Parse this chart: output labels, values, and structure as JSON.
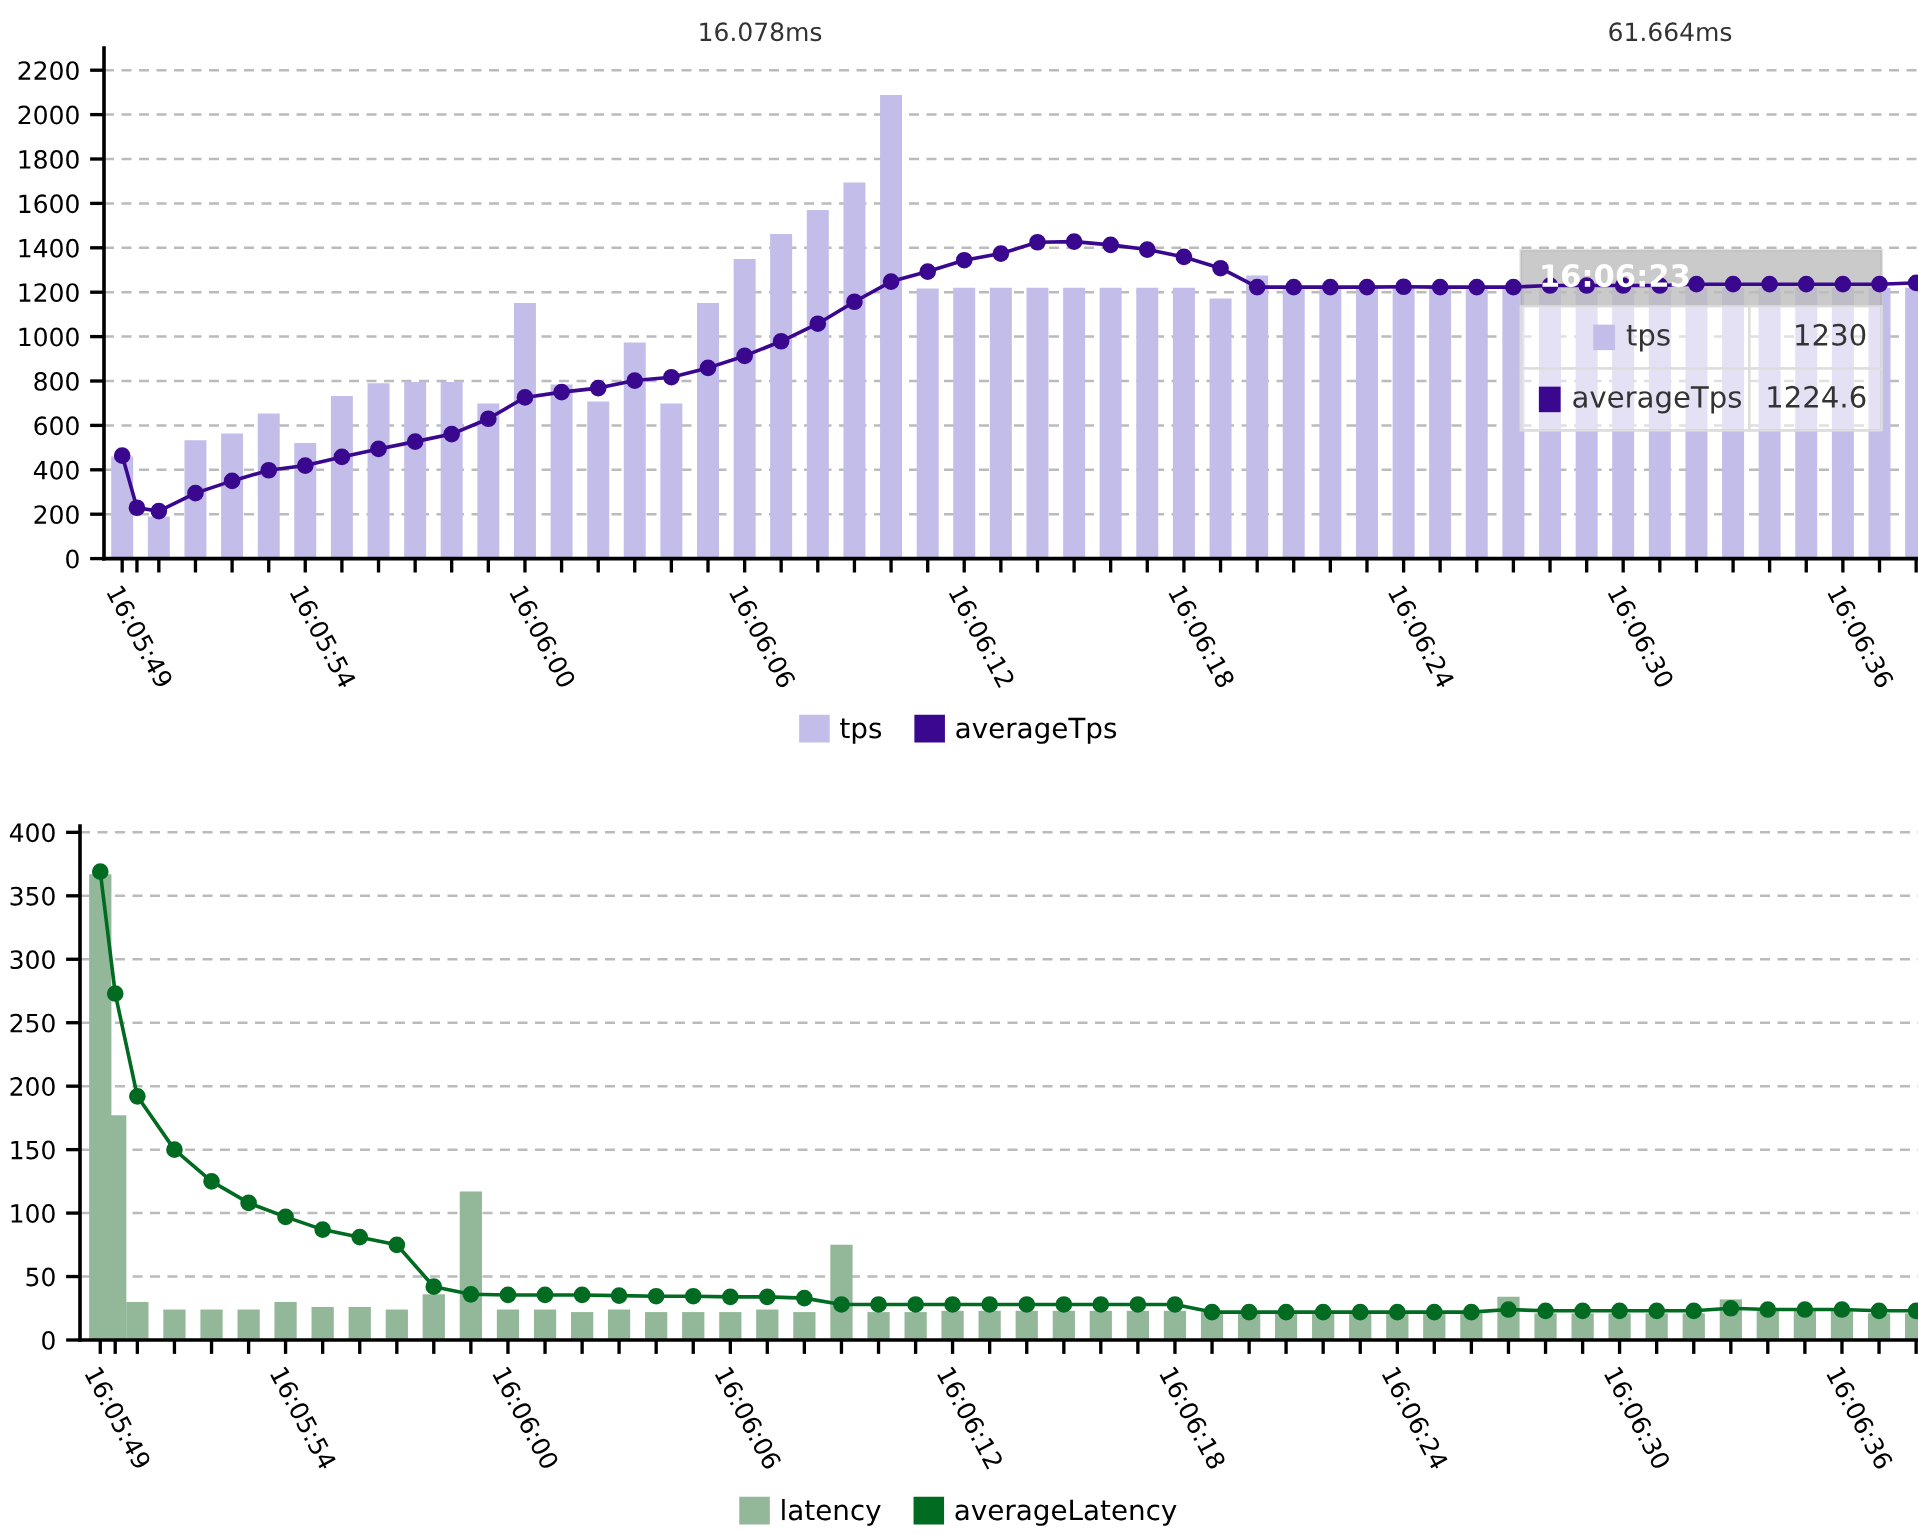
{
  "chart_data": [
    {
      "type": "bar",
      "annotations": [
        "16.078ms",
        "61.664ms",
        "16:06:23",
        "tps",
        "1230",
        "averageTps",
        "1224.6"
      ],
      "x": [
        16.096944,
        16.097056,
        16.097222,
        16.0975,
        16.097778,
        16.098056,
        16.098333,
        16.098611,
        16.098889,
        16.099167,
        16.099444,
        16.099722,
        16.1,
        16.100278,
        16.100556,
        16.100833,
        16.101111,
        16.101389,
        16.101667,
        16.101944,
        16.102222,
        16.1025,
        16.102778,
        16.103056,
        16.103333,
        16.103611,
        16.103889,
        16.104167,
        16.104444,
        16.104722,
        16.105,
        16.105278,
        16.105556,
        16.105833,
        16.106111,
        16.106389,
        16.106667,
        16.106944,
        16.107222,
        16.1075,
        16.107778,
        16.108056,
        16.108333,
        16.108611,
        16.108889,
        16.109167,
        16.109444,
        16.109722,
        16.11,
        16.110278,
        16.110556
      ],
      "series": [
        {
          "name": "tps",
          "color": "#c3bde9",
          "values": [
            460,
            0,
            190,
            533,
            563,
            654,
            521,
            732,
            790,
            796,
            796,
            699,
            1151,
            784,
            708,
            973,
            699,
            1151,
            1350,
            1462,
            1570,
            1694,
            2088,
            1217,
            1220,
            1220,
            1220,
            1220,
            1220,
            1220,
            1220,
            1172,
            1275,
            1220,
            1220,
            1220,
            1230,
            1220,
            1220,
            1220,
            1220,
            1220,
            1220,
            1220,
            1220,
            1220,
            1220,
            1220,
            1220,
            1220,
            1220
          ]
        },
        {
          "name": "averageTps",
          "type": "line",
          "color": "#3a078f",
          "marker": "circle",
          "values": [
            464,
            229,
            214,
            295,
            350,
            398,
            419,
            458,
            494,
            527,
            561,
            630,
            726,
            750,
            768,
            802,
            817,
            859,
            913,
            979,
            1058,
            1157,
            1248,
            1293,
            1344,
            1374,
            1425,
            1428,
            1413,
            1392,
            1359,
            1308,
            1223,
            1223,
            1223,
            1223,
            1224.6,
            1223,
            1223,
            1223,
            1230,
            1230,
            1230,
            1230,
            1236,
            1236,
            1236,
            1236,
            1236,
            1236,
            1242
          ]
        }
      ],
      "xlim": [
        16.096806,
        16.11057
      ],
      "xticks": [
        {
          "value": 16.096944,
          "label": "16:05:49"
        },
        {
          "value": 16.097056,
          "label": null
        },
        {
          "value": 16.097222,
          "label": null
        },
        {
          "value": 16.0975,
          "label": null
        },
        {
          "value": 16.097778,
          "label": null
        },
        {
          "value": 16.098056,
          "label": null
        },
        {
          "value": 16.098333,
          "label": "16:05:54"
        },
        {
          "value": 16.098611,
          "label": null
        },
        {
          "value": 16.098889,
          "label": null
        },
        {
          "value": 16.099167,
          "label": null
        },
        {
          "value": 16.099444,
          "label": null
        },
        {
          "value": 16.099722,
          "label": null
        },
        {
          "value": 16.1,
          "label": "16:06:00"
        },
        {
          "value": 16.100278,
          "label": null
        },
        {
          "value": 16.100556,
          "label": null
        },
        {
          "value": 16.100833,
          "label": null
        },
        {
          "value": 16.101111,
          "label": null
        },
        {
          "value": 16.101389,
          "label": null
        },
        {
          "value": 16.101667,
          "label": "16:06:06"
        },
        {
          "value": 16.101944,
          "label": null
        },
        {
          "value": 16.102222,
          "label": null
        },
        {
          "value": 16.1025,
          "label": null
        },
        {
          "value": 16.102778,
          "label": null
        },
        {
          "value": 16.103056,
          "label": null
        },
        {
          "value": 16.103333,
          "label": "16:06:12"
        },
        {
          "value": 16.103611,
          "label": null
        },
        {
          "value": 16.103889,
          "label": null
        },
        {
          "value": 16.104167,
          "label": null
        },
        {
          "value": 16.104444,
          "label": null
        },
        {
          "value": 16.104722,
          "label": null
        },
        {
          "value": 16.105,
          "label": "16:06:18"
        },
        {
          "value": 16.105278,
          "label": null
        },
        {
          "value": 16.105556,
          "label": null
        },
        {
          "value": 16.105833,
          "label": null
        },
        {
          "value": 16.106111,
          "label": null
        },
        {
          "value": 16.106389,
          "label": null
        },
        {
          "value": 16.106667,
          "label": "16:06:24"
        },
        {
          "value": 16.106944,
          "label": null
        },
        {
          "value": 16.107222,
          "label": null
        },
        {
          "value": 16.1075,
          "label": null
        },
        {
          "value": 16.107778,
          "label": null
        },
        {
          "value": 16.108056,
          "label": null
        },
        {
          "value": 16.108333,
          "label": "16:06:30"
        },
        {
          "value": 16.108611,
          "label": null
        },
        {
          "value": 16.108889,
          "label": null
        },
        {
          "value": 16.109167,
          "label": null
        },
        {
          "value": 16.109444,
          "label": null
        },
        {
          "value": 16.109722,
          "label": null
        },
        {
          "value": 16.11,
          "label": "16:06:36"
        },
        {
          "value": 16.110278,
          "label": null
        },
        {
          "value": 16.110556,
          "label": null
        }
      ],
      "ylim": [
        0,
        2300
      ],
      "yticks": [
        0,
        200,
        400,
        600,
        800,
        1000,
        1200,
        1400,
        1600,
        1800,
        2000,
        2200
      ],
      "grid": "y",
      "legend": "bottom"
    },
    {
      "type": "bar",
      "x": [
        16.096944,
        16.097056,
        16.097222,
        16.0975,
        16.097778,
        16.098056,
        16.098333,
        16.098611,
        16.098889,
        16.099167,
        16.099444,
        16.099722,
        16.1,
        16.100278,
        16.100556,
        16.100833,
        16.101111,
        16.101389,
        16.101667,
        16.101944,
        16.102222,
        16.1025,
        16.102778,
        16.103056,
        16.103333,
        16.103611,
        16.103889,
        16.104167,
        16.104444,
        16.104722,
        16.105,
        16.105278,
        16.105556,
        16.105833,
        16.106111,
        16.106389,
        16.106667,
        16.106944,
        16.107222,
        16.1075,
        16.107778,
        16.108056,
        16.108333,
        16.108611,
        16.108889,
        16.109167,
        16.109444,
        16.109722,
        16.11,
        16.110278,
        16.110556
      ],
      "series": [
        {
          "name": "latency",
          "color": "#93b899",
          "values": [
            367,
            177,
            30,
            24,
            24,
            24,
            30,
            26,
            26,
            24,
            36,
            117,
            24,
            24,
            22,
            24,
            22,
            22,
            22,
            24,
            22,
            75,
            22,
            22,
            23,
            23,
            23,
            23,
            23,
            23,
            23,
            22,
            21,
            21,
            21,
            21,
            21,
            21,
            21,
            34,
            21,
            21,
            21,
            21,
            21,
            32,
            23,
            23,
            23,
            21,
            21
          ]
        },
        {
          "name": "averageLatency",
          "type": "line",
          "color": "#006b21",
          "marker": "circle",
          "values": [
            369,
            273,
            192,
            150,
            125,
            108,
            97,
            87,
            81,
            75,
            42,
            36,
            35.5,
            35.5,
            35.5,
            35,
            34.5,
            34.5,
            34,
            34,
            33,
            28,
            28,
            28,
            28,
            28,
            28,
            28,
            28,
            28,
            28,
            22,
            22,
            22,
            22,
            22,
            22,
            22,
            22,
            24,
            23,
            23,
            23,
            23,
            23,
            25,
            24,
            24,
            24,
            23,
            23
          ]
        }
      ],
      "xlim": [
        16.096792,
        16.11057
      ],
      "xticks": [
        {
          "value": 16.096944,
          "label": "16:05:49"
        },
        {
          "value": 16.097056,
          "label": null
        },
        {
          "value": 16.097222,
          "label": null
        },
        {
          "value": 16.0975,
          "label": null
        },
        {
          "value": 16.097778,
          "label": null
        },
        {
          "value": 16.098056,
          "label": null
        },
        {
          "value": 16.098333,
          "label": "16:05:54"
        },
        {
          "value": 16.098611,
          "label": null
        },
        {
          "value": 16.098889,
          "label": null
        },
        {
          "value": 16.099167,
          "label": null
        },
        {
          "value": 16.099444,
          "label": null
        },
        {
          "value": 16.099722,
          "label": null
        },
        {
          "value": 16.1,
          "label": "16:06:00"
        },
        {
          "value": 16.100278,
          "label": null
        },
        {
          "value": 16.100556,
          "label": null
        },
        {
          "value": 16.100833,
          "label": null
        },
        {
          "value": 16.101111,
          "label": null
        },
        {
          "value": 16.101389,
          "label": null
        },
        {
          "value": 16.101667,
          "label": "16:06:06"
        },
        {
          "value": 16.101944,
          "label": null
        },
        {
          "value": 16.102222,
          "label": null
        },
        {
          "value": 16.1025,
          "label": null
        },
        {
          "value": 16.102778,
          "label": null
        },
        {
          "value": 16.103056,
          "label": null
        },
        {
          "value": 16.103333,
          "label": "16:06:12"
        },
        {
          "value": 16.103611,
          "label": null
        },
        {
          "value": 16.103889,
          "label": null
        },
        {
          "value": 16.104167,
          "label": null
        },
        {
          "value": 16.104444,
          "label": null
        },
        {
          "value": 16.104722,
          "label": null
        },
        {
          "value": 16.105,
          "label": "16:06:18"
        },
        {
          "value": 16.105278,
          "label": null
        },
        {
          "value": 16.105556,
          "label": null
        },
        {
          "value": 16.105833,
          "label": null
        },
        {
          "value": 16.106111,
          "label": null
        },
        {
          "value": 16.106389,
          "label": null
        },
        {
          "value": 16.106667,
          "label": "16:06:24"
        },
        {
          "value": 16.106944,
          "label": null
        },
        {
          "value": 16.107222,
          "label": null
        },
        {
          "value": 16.1075,
          "label": null
        },
        {
          "value": 16.107778,
          "label": null
        },
        {
          "value": 16.108056,
          "label": null
        },
        {
          "value": 16.108333,
          "label": "16:06:30"
        },
        {
          "value": 16.108611,
          "label": null
        },
        {
          "value": 16.108889,
          "label": null
        },
        {
          "value": 16.109167,
          "label": null
        },
        {
          "value": 16.109444,
          "label": null
        },
        {
          "value": 16.109722,
          "label": null
        },
        {
          "value": 16.11,
          "label": "16:06:36"
        },
        {
          "value": 16.110278,
          "label": null
        },
        {
          "value": 16.110556,
          "label": null
        }
      ],
      "ylim": [
        0,
        405
      ],
      "yticks": [
        0,
        50,
        100,
        150,
        200,
        250,
        300,
        350,
        400
      ],
      "grid": "y",
      "legend": "bottom"
    }
  ]
}
